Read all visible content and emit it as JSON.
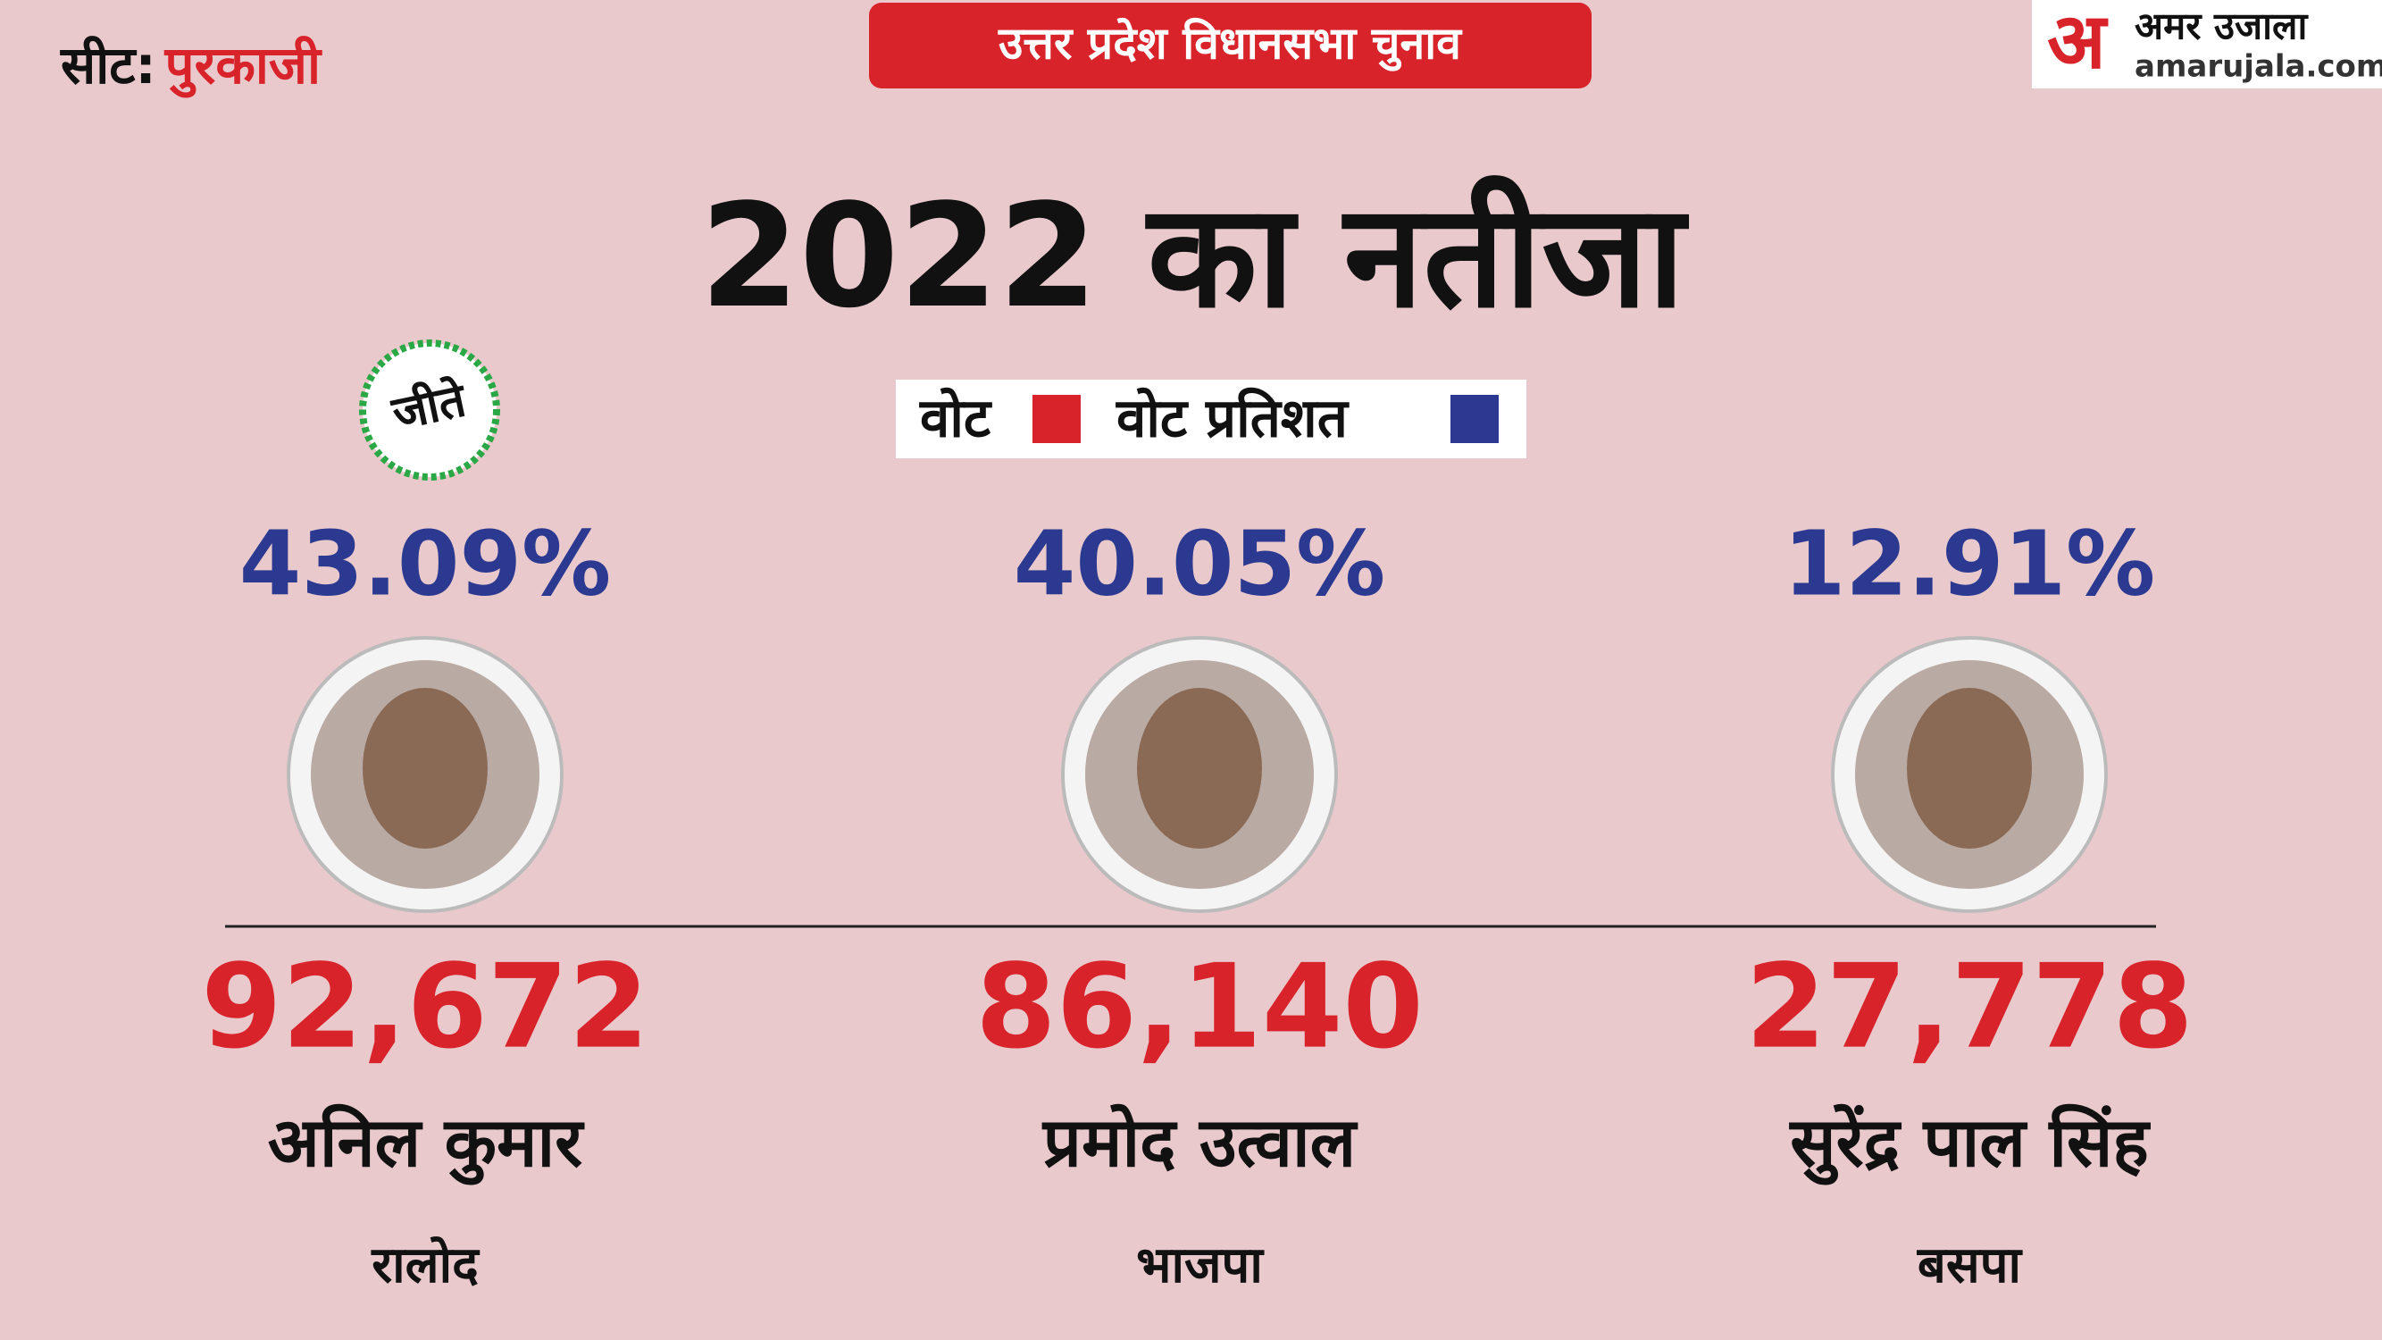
{
  "header": {
    "seat_label": "सीट:",
    "seat_name": "पुरकाजी",
    "banner": "उत्तर प्रदेश विधानसभा चुनाव",
    "logo": {
      "mark": "अ",
      "name": "अमर उजाला",
      "site": "amarujala.com"
    }
  },
  "title": "2022 का नतीजा",
  "legend": [
    {
      "label": "वोट",
      "color": "#d8232a"
    },
    {
      "label": "वोट प्रतिशत",
      "color": "#2b3990"
    }
  ],
  "winner_badge": "जीते",
  "candidates": [
    {
      "vote_share": "43.09%",
      "votes": "92,672",
      "name": "अनिल कुमार",
      "party": "रालोद"
    },
    {
      "vote_share": "40.05%",
      "votes": "86,140",
      "name": "प्रमोद उत्वाल",
      "party": "भाजपा"
    },
    {
      "vote_share": "12.91%",
      "votes": "27,778",
      "name": "सुरेंद्र पाल सिंह",
      "party": "बसपा"
    }
  ]
}
